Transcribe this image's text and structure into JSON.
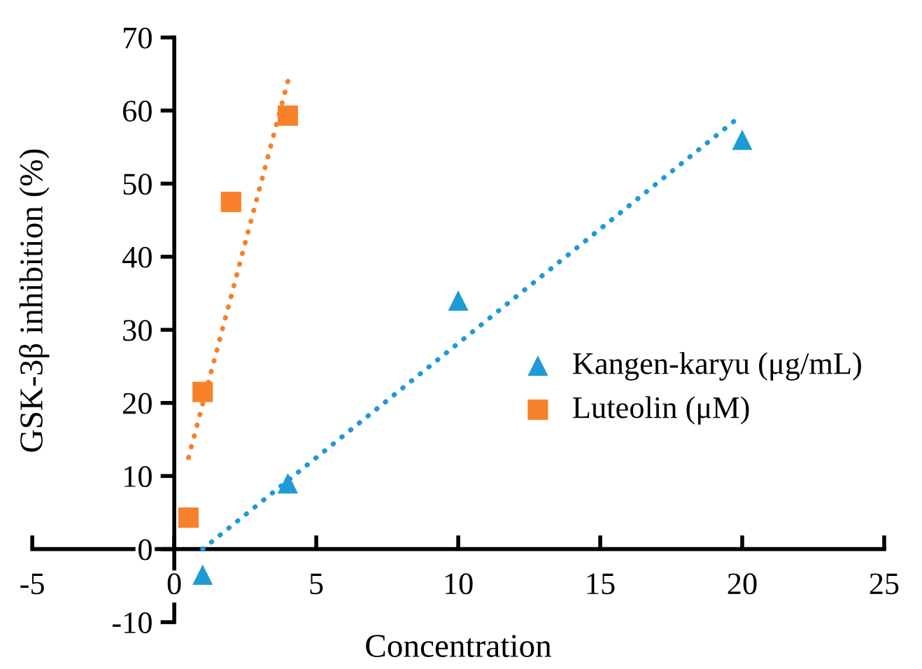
{
  "chart_data": {
    "type": "scatter",
    "xlabel": "Concentration",
    "ylabel": "GSK-3β inhibition (%)",
    "xlim": [
      -5,
      25
    ],
    "xticks": [
      -5,
      0,
      5,
      10,
      15,
      20,
      25
    ],
    "ylim": [
      -10,
      70
    ],
    "yticks": [
      -10,
      0,
      10,
      20,
      30,
      40,
      50,
      60,
      70
    ],
    "grid": false,
    "legend": "right",
    "series": [
      {
        "name": "Kangen-karyu (μg/mL)",
        "color": "#1f9ad6",
        "marker": "triangle",
        "x": [
          1,
          4,
          10,
          20
        ],
        "values": [
          -3.5,
          9,
          34,
          56
        ]
      },
      {
        "name": "Luteolin (μM)",
        "color": "#f7812a",
        "marker": "square",
        "x": [
          0.5,
          1,
          2,
          4
        ],
        "values": [
          4.3,
          21.5,
          47.5,
          59.3
        ]
      },
      {
        "type": "line",
        "color": "#1f9ad6",
        "line_style": "dotted",
        "marker": "none",
        "x": [
          1,
          19.7
        ],
        "values": [
          0,
          58.5
        ]
      },
      {
        "type": "line",
        "color": "#f7812a",
        "line_style": "dotted",
        "marker": "none",
        "x": [
          0.5,
          4
        ],
        "values": [
          12.5,
          64
        ]
      }
    ]
  }
}
